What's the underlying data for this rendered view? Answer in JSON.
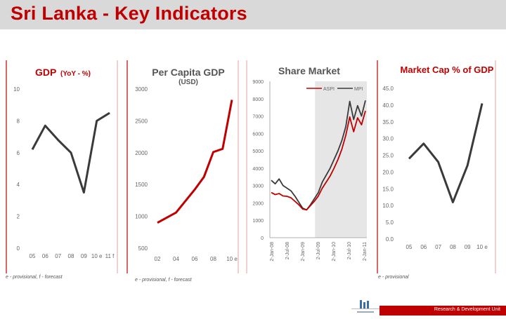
{
  "slide": {
    "title": "Sri Lanka - Key Indicators"
  },
  "notes": {
    "gdp": "e - provisional,   f - forecast",
    "percap": "e - provisional,   f - forecast",
    "mcap": "e - provisional"
  },
  "footer": {
    "text": "Research & Development Unit"
  },
  "colors": {
    "accent": "#c00000",
    "dark_line": "#3a3a3a",
    "red_line": "#c00000"
  },
  "chart_data": [
    {
      "type": "line",
      "title": "GDP",
      "subtitle": "(YoY - %)",
      "categories": [
        "05",
        "06",
        "07",
        "08",
        "09",
        "10 e",
        "11 f"
      ],
      "series": [
        {
          "values": [
            6.2,
            7.7,
            6.8,
            6.0,
            3.5,
            8.0,
            8.5
          ]
        }
      ],
      "ylim": [
        0,
        10
      ],
      "yticks": [
        "0",
        "2",
        "4",
        "6",
        "8",
        "10"
      ],
      "grid": false
    },
    {
      "type": "line",
      "title": "Per Capita GDP",
      "subtitle": "(USD)",
      "x": [
        2002,
        2003,
        2004,
        2005,
        2006,
        2007,
        2008,
        2009,
        2010
      ],
      "xticks": [
        "02",
        "04",
        "06",
        "08",
        "10 e"
      ],
      "series": [
        {
          "values": [
            900,
            980,
            1060,
            1240,
            1420,
            1620,
            2010,
            2060,
            2830
          ]
        }
      ],
      "ylim": [
        500,
        3000
      ],
      "yticks": [
        "500",
        "1000",
        "1500",
        "2000",
        "2500",
        "3000"
      ],
      "grid": false
    },
    {
      "type": "line",
      "title": "Share Market",
      "xticks": [
        "2-Jan-08",
        "2-Jul-08",
        "2-Jan-09",
        "2-Jul-09",
        "2-Jan-10",
        "2-Jul-10",
        "2-Jan-11"
      ],
      "ylim": [
        0,
        9000
      ],
      "yticks": [
        "0",
        "1000",
        "2000",
        "3000",
        "4000",
        "5000",
        "6000",
        "7000",
        "8000",
        "9000"
      ],
      "shaded_from": "2-Jun-09",
      "legend_position": "top-right",
      "series": [
        {
          "name": "ASPI",
          "color": "#c00000",
          "values": [
            2600,
            2480,
            2540,
            2400,
            2380,
            2300,
            2100,
            1900,
            1650,
            1600,
            1850,
            2100,
            2400,
            2850,
            3200,
            3550,
            4000,
            4500,
            5100,
            5900,
            6950,
            6100,
            6900,
            6500,
            7300
          ]
        },
        {
          "name": "MPI",
          "color": "#3a3a3a",
          "values": [
            3300,
            3100,
            3380,
            3000,
            2850,
            2700,
            2400,
            2050,
            1700,
            1600,
            1900,
            2250,
            2600,
            3200,
            3600,
            4000,
            4500,
            5000,
            5600,
            6400,
            7850,
            6800,
            7600,
            7000,
            7900
          ]
        }
      ]
    },
    {
      "type": "line",
      "title": "Market Cap % of GDP",
      "categories": [
        "05",
        "06",
        "07",
        "08",
        "09",
        "10 e"
      ],
      "series": [
        {
          "values": [
            24.0,
            28.5,
            23.0,
            11.0,
            22.0,
            40.5
          ]
        }
      ],
      "ylim": [
        0,
        45
      ],
      "yticks": [
        "0.0",
        "5.0",
        "10.0",
        "15.0",
        "20.0",
        "25.0",
        "30.0",
        "35.0",
        "40.0",
        "45.0"
      ],
      "grid": false
    }
  ]
}
